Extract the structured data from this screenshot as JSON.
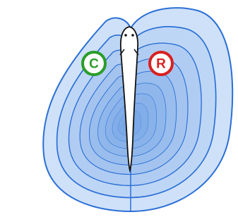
{
  "markers": [
    {
      "label": "C"
    },
    {
      "label": "R"
    }
  ]
}
